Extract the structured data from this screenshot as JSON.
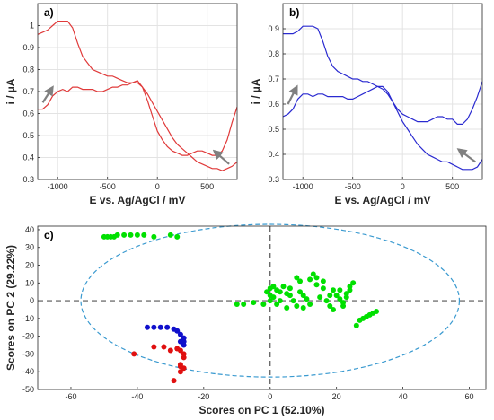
{
  "chart_data": [
    {
      "type": "line",
      "panel_label": "a)",
      "xlabel": "E vs. Ag/AgCl / mV",
      "ylabel": "i / µA",
      "xlim": [
        -1200,
        800
      ],
      "ylim": [
        0.3,
        1.1
      ],
      "xticks": [
        -1000,
        -500,
        0,
        500
      ],
      "yticks": [
        0.3,
        0.4,
        0.5,
        0.6,
        0.7,
        0.8,
        0.9,
        1
      ],
      "xtick_labels": [
        "-1000",
        "-500",
        "0",
        "500"
      ],
      "ytick_labels": [
        "0.3",
        "0.4",
        "0.5",
        "0.6",
        "0.7",
        "0.8",
        "0.9",
        "1"
      ],
      "grid": true,
      "line_color": "#e03a3a",
      "series": [
        {
          "x": [
            -1200,
            -1150,
            -1100,
            -1050,
            -1000,
            -950,
            -900,
            -850,
            -800,
            -750,
            -700,
            -650,
            -600,
            -550,
            -500,
            -450,
            -400,
            -350,
            -300,
            -250,
            -200,
            -150,
            -100,
            -50,
            0,
            50,
            100,
            150,
            200,
            250,
            300,
            350,
            400,
            450,
            500,
            550,
            600,
            650,
            700,
            750,
            800
          ],
          "y": [
            0.62,
            0.62,
            0.64,
            0.68,
            0.7,
            0.71,
            0.7,
            0.72,
            0.72,
            0.71,
            0.71,
            0.71,
            0.7,
            0.7,
            0.71,
            0.72,
            0.72,
            0.73,
            0.73,
            0.74,
            0.75,
            0.72,
            0.66,
            0.59,
            0.52,
            0.48,
            0.45,
            0.43,
            0.42,
            0.41,
            0.41,
            0.42,
            0.43,
            0.43,
            0.42,
            0.41,
            0.41,
            0.43,
            0.48,
            0.56,
            0.63
          ]
        },
        {
          "x": [
            800,
            750,
            700,
            650,
            600,
            550,
            500,
            450,
            400,
            350,
            300,
            250,
            200,
            150,
            100,
            50,
            0,
            -50,
            -100,
            -150,
            -200,
            -250,
            -300,
            -350,
            -400,
            -450,
            -500,
            -550,
            -600,
            -650,
            -700,
            -750,
            -800,
            -850,
            -900,
            -950,
            -1000,
            -1050,
            -1100,
            -1150,
            -1200
          ],
          "y": [
            0.38,
            0.36,
            0.35,
            0.34,
            0.35,
            0.35,
            0.36,
            0.37,
            0.38,
            0.4,
            0.42,
            0.44,
            0.46,
            0.49,
            0.53,
            0.57,
            0.61,
            0.65,
            0.69,
            0.72,
            0.74,
            0.74,
            0.74,
            0.75,
            0.76,
            0.77,
            0.77,
            0.78,
            0.79,
            0.8,
            0.83,
            0.86,
            0.92,
            0.99,
            1.02,
            1.02,
            1.02,
            1.0,
            0.98,
            0.97,
            0.96
          ]
        }
      ],
      "arrows": [
        {
          "from": [
            -1150,
            0.65
          ],
          "to": [
            -1050,
            0.72
          ]
        },
        {
          "from": [
            720,
            0.37
          ],
          "to": [
            570,
            0.43
          ]
        }
      ]
    },
    {
      "type": "line",
      "panel_label": "b)",
      "xlabel": "E vs. Ag/AgCl / mV",
      "ylabel": "i / µA",
      "xlim": [
        -1200,
        800
      ],
      "ylim": [
        0.3,
        1.0
      ],
      "xticks": [
        -1000,
        -500,
        0,
        500
      ],
      "yticks": [
        0.3,
        0.4,
        0.5,
        0.6,
        0.7,
        0.8,
        0.9
      ],
      "xtick_labels": [
        "-1000",
        "-500",
        "0",
        "500"
      ],
      "ytick_labels": [
        "0.3",
        "0.4",
        "0.5",
        "0.6",
        "0.7",
        "0.8",
        "0.9"
      ],
      "grid": true,
      "line_color": "#2a2ad0",
      "series": [
        {
          "x": [
            -1200,
            -1150,
            -1100,
            -1050,
            -1000,
            -950,
            -900,
            -850,
            -800,
            -750,
            -700,
            -650,
            -600,
            -550,
            -500,
            -450,
            -400,
            -350,
            -300,
            -250,
            -200,
            -150,
            -100,
            -50,
            0,
            50,
            100,
            150,
            200,
            250,
            300,
            350,
            400,
            450,
            500,
            550,
            600,
            650,
            700,
            750,
            800
          ],
          "y": [
            0.55,
            0.56,
            0.58,
            0.62,
            0.64,
            0.64,
            0.63,
            0.64,
            0.64,
            0.63,
            0.63,
            0.63,
            0.63,
            0.62,
            0.62,
            0.63,
            0.64,
            0.65,
            0.66,
            0.67,
            0.67,
            0.65,
            0.61,
            0.58,
            0.56,
            0.55,
            0.54,
            0.53,
            0.53,
            0.53,
            0.54,
            0.55,
            0.55,
            0.54,
            0.54,
            0.52,
            0.52,
            0.54,
            0.58,
            0.63,
            0.69
          ]
        },
        {
          "x": [
            800,
            750,
            700,
            650,
            600,
            550,
            500,
            450,
            400,
            350,
            300,
            250,
            200,
            150,
            100,
            50,
            0,
            -50,
            -100,
            -150,
            -200,
            -250,
            -300,
            -350,
            -400,
            -450,
            -500,
            -550,
            -600,
            -650,
            -700,
            -750,
            -800,
            -850,
            -900,
            -950,
            -1000,
            -1050,
            -1100,
            -1150,
            -1200
          ],
          "y": [
            0.38,
            0.35,
            0.34,
            0.34,
            0.34,
            0.35,
            0.36,
            0.37,
            0.37,
            0.38,
            0.39,
            0.4,
            0.42,
            0.44,
            0.47,
            0.5,
            0.53,
            0.57,
            0.61,
            0.64,
            0.66,
            0.67,
            0.68,
            0.69,
            0.69,
            0.7,
            0.7,
            0.71,
            0.72,
            0.73,
            0.75,
            0.79,
            0.85,
            0.9,
            0.91,
            0.91,
            0.91,
            0.89,
            0.88,
            0.88,
            0.88
          ]
        }
      ],
      "arrows": [
        {
          "from": [
            -1150,
            0.6
          ],
          "to": [
            -1060,
            0.67
          ]
        },
        {
          "from": [
            730,
            0.37
          ],
          "to": [
            560,
            0.42
          ]
        }
      ]
    },
    {
      "type": "scatter",
      "panel_label": "c)",
      "xlabel": "Scores on PC 1 (52.10%)",
      "ylabel": "Scores on PC 2 (29.22%)",
      "xlim": [
        -70,
        65
      ],
      "ylim": [
        -50,
        42
      ],
      "xticks": [
        -60,
        -40,
        -20,
        0,
        20,
        40,
        60
      ],
      "yticks": [
        -50,
        -40,
        -30,
        -20,
        -10,
        0,
        10,
        20,
        30,
        40
      ],
      "xtick_labels": [
        "-60",
        "-40",
        "-20",
        "0",
        "20",
        "40",
        "60"
      ],
      "ytick_labels": [
        "-50",
        "-40",
        "-30",
        "-20",
        "-10",
        "0",
        "10",
        "20",
        "30",
        "40"
      ],
      "grid": false,
      "ellipse": {
        "cx": 0,
        "cy": 0,
        "rx": 57,
        "ry": 43,
        "color": "#3a9ad0"
      },
      "series": [
        {
          "color": "#00e000",
          "points": [
            [
              -50,
              36
            ],
            [
              -49,
              36
            ],
            [
              -48,
              36
            ],
            [
              -47,
              36
            ],
            [
              -46,
              37
            ],
            [
              -44,
              37
            ],
            [
              -42,
              37
            ],
            [
              -40,
              37
            ],
            [
              -38,
              37
            ],
            [
              -35,
              36
            ],
            [
              -30,
              37
            ],
            [
              -28,
              36
            ],
            [
              -10,
              -2
            ],
            [
              -8,
              -2
            ],
            [
              -5,
              -1
            ],
            [
              -2,
              -2
            ],
            [
              -1,
              5
            ],
            [
              0,
              7
            ],
            [
              0,
              3
            ],
            [
              0,
              0
            ],
            [
              1,
              8
            ],
            [
              2,
              6
            ],
            [
              1,
              2
            ],
            [
              2,
              -2
            ],
            [
              3,
              5
            ],
            [
              3,
              0
            ],
            [
              4,
              8
            ],
            [
              5,
              4
            ],
            [
              6,
              7
            ],
            [
              5,
              -4
            ],
            [
              6,
              3
            ],
            [
              7,
              0
            ],
            [
              8,
              -3
            ],
            [
              8,
              13
            ],
            [
              9,
              11
            ],
            [
              9,
              5
            ],
            [
              10,
              3
            ],
            [
              10,
              -4
            ],
            [
              11,
              1
            ],
            [
              12,
              -2
            ],
            [
              12,
              12
            ],
            [
              13,
              15
            ],
            [
              14,
              13
            ],
            [
              15,
              2
            ],
            [
              14,
              9
            ],
            [
              16,
              11
            ],
            [
              16,
              7
            ],
            [
              17,
              0
            ],
            [
              18,
              3
            ],
            [
              18,
              -3
            ],
            [
              19,
              6
            ],
            [
              19,
              -5
            ],
            [
              20,
              3
            ],
            [
              21,
              1
            ],
            [
              21,
              6
            ],
            [
              22,
              -1
            ],
            [
              23,
              4
            ],
            [
              24,
              8
            ],
            [
              24,
              6
            ],
            [
              25,
              10
            ],
            [
              22,
              -3
            ],
            [
              23,
              2
            ],
            [
              26,
              -14
            ],
            [
              27,
              -11
            ],
            [
              28,
              -10
            ],
            [
              29,
              -9
            ],
            [
              30,
              -8
            ],
            [
              31,
              -7
            ],
            [
              32,
              -6
            ]
          ]
        },
        {
          "color": "#1010cc",
          "points": [
            [
              -37,
              -15
            ],
            [
              -35,
              -15
            ],
            [
              -33,
              -15
            ],
            [
              -31,
              -15
            ],
            [
              -29,
              -16
            ],
            [
              -28,
              -17
            ],
            [
              -27,
              -19
            ],
            [
              -26,
              -21
            ],
            [
              -26,
              -23
            ],
            [
              -26,
              -25
            ],
            [
              -27,
              -23
            ]
          ]
        },
        {
          "color": "#e01010",
          "points": [
            [
              -41,
              -30
            ],
            [
              -35,
              -26
            ],
            [
              -32,
              -26
            ],
            [
              -30,
              -28
            ],
            [
              -28,
              -27
            ],
            [
              -27,
              -28
            ],
            [
              -26,
              -30
            ],
            [
              -26,
              -32
            ],
            [
              -27,
              -36
            ],
            [
              -27,
              -37
            ],
            [
              -26,
              -38
            ],
            [
              -27,
              -40
            ],
            [
              -29,
              -45
            ]
          ]
        }
      ]
    }
  ]
}
